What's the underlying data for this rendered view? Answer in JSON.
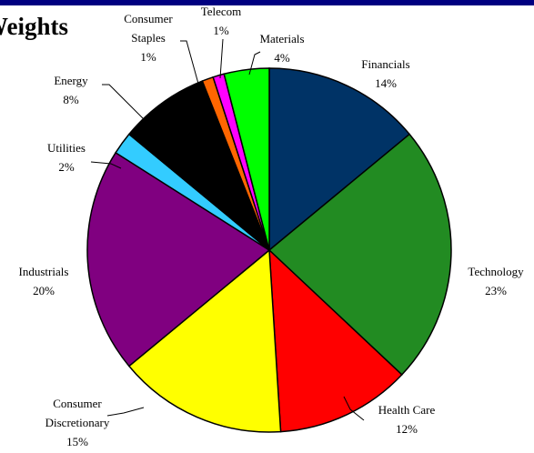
{
  "header": {
    "title": "Weights",
    "bar_color": "#000080"
  },
  "chart_data": {
    "type": "pie",
    "title": "Weights",
    "start_angle_deg": 0,
    "direction": "clockwise",
    "slices": [
      {
        "label": [
          "Financials"
        ],
        "value_label": "14%",
        "value": 14,
        "color": "#003366"
      },
      {
        "label": [
          "Technology"
        ],
        "value_label": "23%",
        "value": 23,
        "color": "#228B22"
      },
      {
        "label": [
          "Health Care"
        ],
        "value_label": "12%",
        "value": 12,
        "color": "#FF0000"
      },
      {
        "label": [
          "Consumer",
          "Discretionary"
        ],
        "value_label": "15%",
        "value": 15,
        "color": "#FFFF00"
      },
      {
        "label": [
          "Industrials"
        ],
        "value_label": "20%",
        "value": 20,
        "color": "#800080"
      },
      {
        "label": [
          "Utilities"
        ],
        "value_label": "2%",
        "value": 2,
        "color": "#33CCFF"
      },
      {
        "label": [
          "Energy"
        ],
        "value_label": "8%",
        "value": 8,
        "color": "#000000"
      },
      {
        "label": [
          "Consumer",
          "Staples"
        ],
        "value_label": "1%",
        "value": 1,
        "color": "#FF6600"
      },
      {
        "label": [
          "Telecom"
        ],
        "value_label": "1%",
        "value": 1,
        "color": "#FF00FF"
      },
      {
        "label": [
          "Materials"
        ],
        "value_label": "4%",
        "value": 4,
        "color": "#00FF00"
      }
    ]
  }
}
